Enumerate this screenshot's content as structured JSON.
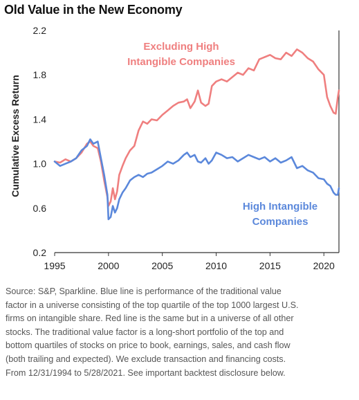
{
  "title": "Old Value in the New Economy",
  "chart_data": {
    "type": "line",
    "title": "Old Value in the New Economy",
    "xlabel": "",
    "ylabel": "Cumulative Excess Return",
    "xlim": [
      1995,
      2021.4
    ],
    "ylim": [
      0.2,
      2.2
    ],
    "xticks": [
      1995,
      2000,
      2005,
      2010,
      2015,
      2020
    ],
    "yticks": [
      0.2,
      0.6,
      1.0,
      1.4,
      1.8,
      2.2
    ],
    "ytick_labels": [
      "0.2",
      "0.6",
      "1.0",
      "1.4",
      "1.8",
      "2.2"
    ],
    "grid": false,
    "colors": {
      "excluding": "#ef7f7f",
      "high": "#5b88db"
    },
    "annotations": [
      {
        "series": "excluding",
        "lines": [
          "Excluding High",
          "Intangible Companies"
        ]
      },
      {
        "series": "high",
        "lines": [
          "High Intangible",
          "Companies"
        ]
      }
    ],
    "series": [
      {
        "key": "excluding",
        "x": [
          1995.0,
          1995.5,
          1996.0,
          1996.5,
          1997.0,
          1997.5,
          1998.0,
          1998.3,
          1998.6,
          1999.0,
          1999.3,
          1999.6,
          1999.9,
          2000.0,
          2000.2,
          2000.4,
          2000.6,
          2000.8,
          2001.0,
          2001.3,
          2001.6,
          2002.0,
          2002.4,
          2002.8,
          2003.2,
          2003.6,
          2004.0,
          2004.5,
          2005.0,
          2005.5,
          2006.0,
          2006.5,
          2007.0,
          2007.3,
          2007.6,
          2008.0,
          2008.3,
          2008.6,
          2009.0,
          2009.3,
          2009.6,
          2010.0,
          2010.5,
          2011.0,
          2011.5,
          2012.0,
          2012.5,
          2013.0,
          2013.5,
          2014.0,
          2014.5,
          2015.0,
          2015.5,
          2016.0,
          2016.5,
          2017.0,
          2017.5,
          2018.0,
          2018.5,
          2019.0,
          2019.5,
          2020.0,
          2020.3,
          2020.6,
          2020.9,
          2021.1,
          2021.3,
          2021.4
        ],
        "y": [
          1.02,
          1.01,
          1.04,
          1.02,
          1.05,
          1.1,
          1.18,
          1.2,
          1.16,
          1.14,
          1.02,
          0.85,
          0.7,
          0.62,
          0.66,
          0.78,
          0.68,
          0.75,
          0.9,
          0.98,
          1.05,
          1.12,
          1.16,
          1.3,
          1.38,
          1.36,
          1.4,
          1.39,
          1.44,
          1.48,
          1.52,
          1.55,
          1.56,
          1.58,
          1.5,
          1.56,
          1.66,
          1.55,
          1.52,
          1.54,
          1.7,
          1.74,
          1.76,
          1.74,
          1.78,
          1.82,
          1.8,
          1.86,
          1.84,
          1.94,
          1.96,
          1.98,
          1.95,
          1.94,
          2.0,
          1.97,
          2.03,
          2.0,
          1.95,
          1.92,
          1.85,
          1.8,
          1.6,
          1.52,
          1.46,
          1.45,
          1.6,
          1.66
        ]
      },
      {
        "key": "high",
        "x": [
          1995.0,
          1995.5,
          1996.0,
          1996.5,
          1997.0,
          1997.5,
          1998.0,
          1998.3,
          1998.6,
          1999.0,
          1999.3,
          1999.6,
          1999.9,
          2000.0,
          2000.2,
          2000.4,
          2000.6,
          2000.8,
          2001.0,
          2001.3,
          2001.6,
          2002.0,
          2002.4,
          2002.8,
          2003.2,
          2003.6,
          2004.0,
          2004.5,
          2005.0,
          2005.5,
          2006.0,
          2006.5,
          2007.0,
          2007.3,
          2007.6,
          2008.0,
          2008.3,
          2008.6,
          2009.0,
          2009.3,
          2009.6,
          2010.0,
          2010.5,
          2011.0,
          2011.5,
          2012.0,
          2012.5,
          2013.0,
          2013.5,
          2014.0,
          2014.5,
          2015.0,
          2015.5,
          2016.0,
          2016.5,
          2017.0,
          2017.5,
          2018.0,
          2018.5,
          2019.0,
          2019.5,
          2020.0,
          2020.3,
          2020.6,
          2020.9,
          2021.1,
          2021.3,
          2021.4
        ],
        "y": [
          1.02,
          0.98,
          1.0,
          1.02,
          1.05,
          1.12,
          1.16,
          1.22,
          1.18,
          1.2,
          1.05,
          0.9,
          0.72,
          0.5,
          0.52,
          0.62,
          0.56,
          0.6,
          0.68,
          0.74,
          0.78,
          0.85,
          0.88,
          0.9,
          0.88,
          0.91,
          0.92,
          0.95,
          0.98,
          1.02,
          1.0,
          1.03,
          1.08,
          1.1,
          1.06,
          1.08,
          1.02,
          1.01,
          1.05,
          1.0,
          1.03,
          1.1,
          1.08,
          1.05,
          1.06,
          1.02,
          1.05,
          1.08,
          1.06,
          1.04,
          1.06,
          1.02,
          1.05,
          1.01,
          1.03,
          1.06,
          0.96,
          0.98,
          0.94,
          0.92,
          0.87,
          0.86,
          0.82,
          0.8,
          0.74,
          0.72,
          0.72,
          0.78
        ]
      }
    ]
  },
  "caption": [
    "Source: S&P, Sparkline. Blue line is performance of the traditional value",
    "factor in a universe consisting of the top quartile of the top 1000 largest U.S.",
    "firms on intangible share. Red line is the same but in a universe of all other",
    "stocks. The traditional value factor is a long-short portfolio of the top and",
    "bottom quartiles of stocks on price to book, earnings, sales, and cash flow",
    "(both trailing and expected). We exclude transaction and financing costs.",
    "From 12/31/1994 to 5/28/2021. See important backtest disclosure below."
  ]
}
